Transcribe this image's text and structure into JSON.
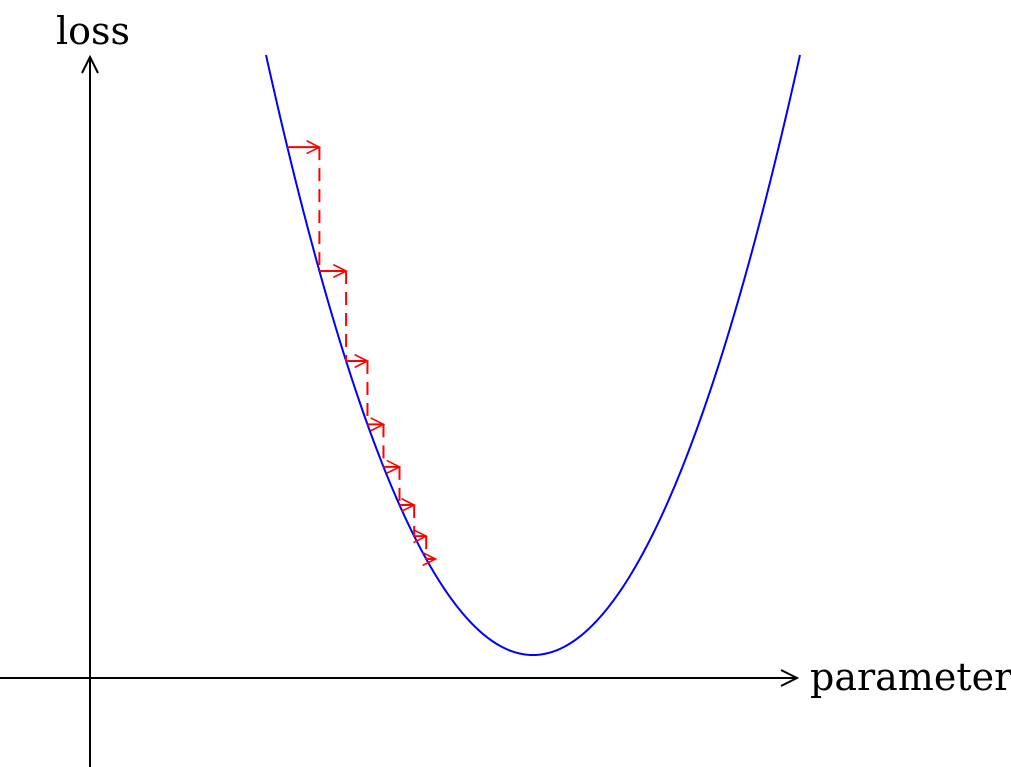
{
  "axes": {
    "x_label": "parameter",
    "y_label": "loss"
  },
  "colors": {
    "axis": "#000000",
    "curve": "#0000ff",
    "steps": "#ff0000"
  },
  "diagram": {
    "type": "gradient-descent-illustration",
    "curve": "parabola",
    "minimum_x": 10,
    "steps_x": [
      0.8,
      2.0,
      3.0,
      3.8,
      4.4,
      5.0,
      5.55,
      6.0,
      6.35
    ]
  }
}
